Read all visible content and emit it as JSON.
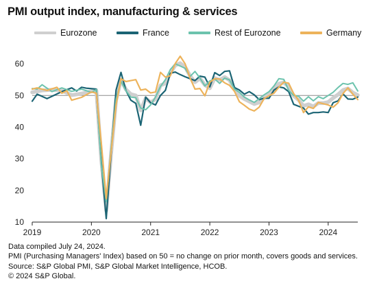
{
  "title": "PMI output index, manufacturing & services",
  "notes": [
    "Data compiled July 24, 2024.",
    "PMI (Purchasing Managers' Index) based on 50 = no change on prior month, covers goods and services.",
    "Source: S&P Global PMI, S&P Global Market Intelligence, HCOB.",
    "© 2024 S&P Global."
  ],
  "chart_data": {
    "type": "line",
    "title": "PMI output index, manufacturing & services",
    "xlabel": "",
    "ylabel": "",
    "x_range": [
      "2019-01",
      "2024-07"
    ],
    "ylim": [
      10,
      65
    ],
    "yticks": [
      10,
      20,
      30,
      40,
      50,
      60
    ],
    "xticks": [
      "2019",
      "2020",
      "2021",
      "2022",
      "2023",
      "2024"
    ],
    "reference_line": 50,
    "grid": false,
    "legend_position": "top",
    "series": [
      {
        "name": "Eurozone",
        "color": "#cfcfcf",
        "values": [
          {
            "x": "2019-01",
            "y": 51.0
          },
          {
            "x": "2019-03",
            "y": 51.6
          },
          {
            "x": "2019-05",
            "y": 51.8
          },
          {
            "x": "2019-07",
            "y": 51.5
          },
          {
            "x": "2019-09",
            "y": 50.1
          },
          {
            "x": "2019-11",
            "y": 50.6
          },
          {
            "x": "2020-01",
            "y": 51.3
          },
          {
            "x": "2020-02",
            "y": 51.6
          },
          {
            "x": "2020-03",
            "y": 29.7
          },
          {
            "x": "2020-04",
            "y": 13.6
          },
          {
            "x": "2020-05",
            "y": 31.9
          },
          {
            "x": "2020-06",
            "y": 48.5
          },
          {
            "x": "2020-07",
            "y": 54.9
          },
          {
            "x": "2020-08",
            "y": 51.9
          },
          {
            "x": "2020-09",
            "y": 50.4
          },
          {
            "x": "2020-10",
            "y": 50.0
          },
          {
            "x": "2020-11",
            "y": 45.3
          },
          {
            "x": "2020-12",
            "y": 49.1
          },
          {
            "x": "2021-01",
            "y": 47.8
          },
          {
            "x": "2021-02",
            "y": 48.8
          },
          {
            "x": "2021-03",
            "y": 53.2
          },
          {
            "x": "2021-04",
            "y": 53.8
          },
          {
            "x": "2021-05",
            "y": 57.1
          },
          {
            "x": "2021-06",
            "y": 59.5
          },
          {
            "x": "2021-07",
            "y": 60.2
          },
          {
            "x": "2021-08",
            "y": 59.0
          },
          {
            "x": "2021-09",
            "y": 56.2
          },
          {
            "x": "2021-10",
            "y": 54.2
          },
          {
            "x": "2021-11",
            "y": 55.4
          },
          {
            "x": "2021-12",
            "y": 53.3
          },
          {
            "x": "2022-01",
            "y": 52.3
          },
          {
            "x": "2022-02",
            "y": 55.5
          },
          {
            "x": "2022-03",
            "y": 54.9
          },
          {
            "x": "2022-04",
            "y": 55.8
          },
          {
            "x": "2022-05",
            "y": 54.8
          },
          {
            "x": "2022-06",
            "y": 52.0
          },
          {
            "x": "2022-07",
            "y": 49.9
          },
          {
            "x": "2022-08",
            "y": 48.9
          },
          {
            "x": "2022-09",
            "y": 48.1
          },
          {
            "x": "2022-10",
            "y": 47.3
          },
          {
            "x": "2022-11",
            "y": 47.8
          },
          {
            "x": "2022-12",
            "y": 49.3
          },
          {
            "x": "2023-01",
            "y": 50.3
          },
          {
            "x": "2023-02",
            "y": 52.0
          },
          {
            "x": "2023-03",
            "y": 53.7
          },
          {
            "x": "2023-04",
            "y": 54.1
          },
          {
            "x": "2023-05",
            "y": 52.8
          },
          {
            "x": "2023-06",
            "y": 49.9
          },
          {
            "x": "2023-07",
            "y": 48.6
          },
          {
            "x": "2023-08",
            "y": 46.7
          },
          {
            "x": "2023-09",
            "y": 47.2
          },
          {
            "x": "2023-10",
            "y": 46.5
          },
          {
            "x": "2023-11",
            "y": 47.6
          },
          {
            "x": "2023-12",
            "y": 47.6
          },
          {
            "x": "2024-01",
            "y": 47.9
          },
          {
            "x": "2024-02",
            "y": 49.2
          },
          {
            "x": "2024-03",
            "y": 50.3
          },
          {
            "x": "2024-04",
            "y": 51.7
          },
          {
            "x": "2024-05",
            "y": 52.2
          },
          {
            "x": "2024-06",
            "y": 50.9
          },
          {
            "x": "2024-07",
            "y": 50.1
          }
        ]
      },
      {
        "name": "France",
        "color": "#1b6474",
        "values": [
          {
            "x": "2019-01",
            "y": 48.2
          },
          {
            "x": "2019-02",
            "y": 50.4
          },
          {
            "x": "2019-04",
            "y": 49.0
          },
          {
            "x": "2019-07",
            "y": 51.2
          },
          {
            "x": "2019-09",
            "y": 52.4
          },
          {
            "x": "2019-10",
            "y": 51.4
          },
          {
            "x": "2019-11",
            "y": 52.6
          },
          {
            "x": "2019-12",
            "y": 52.3
          },
          {
            "x": "2020-02",
            "y": 52.0
          },
          {
            "x": "2020-03",
            "y": 28.9
          },
          {
            "x": "2020-04",
            "y": 11.1
          },
          {
            "x": "2020-05",
            "y": 32.1
          },
          {
            "x": "2020-06",
            "y": 51.7
          },
          {
            "x": "2020-07",
            "y": 57.3
          },
          {
            "x": "2020-08",
            "y": 51.6
          },
          {
            "x": "2020-09",
            "y": 48.5
          },
          {
            "x": "2020-10",
            "y": 47.5
          },
          {
            "x": "2020-11",
            "y": 40.6
          },
          {
            "x": "2020-12",
            "y": 49.5
          },
          {
            "x": "2021-01",
            "y": 47.7
          },
          {
            "x": "2021-02",
            "y": 47.0
          },
          {
            "x": "2021-03",
            "y": 50.0
          },
          {
            "x": "2021-04",
            "y": 51.6
          },
          {
            "x": "2021-05",
            "y": 57.0
          },
          {
            "x": "2021-06",
            "y": 57.4
          },
          {
            "x": "2021-07",
            "y": 56.6
          },
          {
            "x": "2021-08",
            "y": 55.9
          },
          {
            "x": "2021-09",
            "y": 55.3
          },
          {
            "x": "2021-10",
            "y": 54.7
          },
          {
            "x": "2021-11",
            "y": 56.1
          },
          {
            "x": "2021-12",
            "y": 55.8
          },
          {
            "x": "2022-01",
            "y": 52.7
          },
          {
            "x": "2022-02",
            "y": 57.2
          },
          {
            "x": "2022-03",
            "y": 56.3
          },
          {
            "x": "2022-04",
            "y": 57.6
          },
          {
            "x": "2022-05",
            "y": 57.8
          },
          {
            "x": "2022-06",
            "y": 52.5
          },
          {
            "x": "2022-07",
            "y": 51.7
          },
          {
            "x": "2022-08",
            "y": 50.4
          },
          {
            "x": "2022-09",
            "y": 51.2
          },
          {
            "x": "2022-10",
            "y": 50.2
          },
          {
            "x": "2022-11",
            "y": 48.7
          },
          {
            "x": "2022-12",
            "y": 49.1
          },
          {
            "x": "2023-01",
            "y": 49.1
          },
          {
            "x": "2023-02",
            "y": 51.7
          },
          {
            "x": "2023-03",
            "y": 52.7
          },
          {
            "x": "2023-04",
            "y": 52.4
          },
          {
            "x": "2023-05",
            "y": 51.2
          },
          {
            "x": "2023-06",
            "y": 47.2
          },
          {
            "x": "2023-07",
            "y": 46.6
          },
          {
            "x": "2023-08",
            "y": 46.0
          },
          {
            "x": "2023-09",
            "y": 44.1
          },
          {
            "x": "2023-10",
            "y": 44.6
          },
          {
            "x": "2023-11",
            "y": 44.6
          },
          {
            "x": "2023-12",
            "y": 44.8
          },
          {
            "x": "2024-01",
            "y": 44.6
          },
          {
            "x": "2024-02",
            "y": 47.7
          },
          {
            "x": "2024-03",
            "y": 48.3
          },
          {
            "x": "2024-04",
            "y": 50.5
          },
          {
            "x": "2024-05",
            "y": 48.9
          },
          {
            "x": "2024-06",
            "y": 48.8
          },
          {
            "x": "2024-07",
            "y": 49.5
          }
        ]
      },
      {
        "name": "Rest of Eurozone",
        "color": "#6cc3ad",
        "values": [
          {
            "x": "2019-01",
            "y": 52.2
          },
          {
            "x": "2019-02",
            "y": 52.0
          },
          {
            "x": "2019-03",
            "y": 53.4
          },
          {
            "x": "2019-05",
            "y": 51.2
          },
          {
            "x": "2019-07",
            "y": 52.4
          },
          {
            "x": "2019-09",
            "y": 51.3
          },
          {
            "x": "2019-11",
            "y": 52.0
          },
          {
            "x": "2020-01",
            "y": 51.0
          },
          {
            "x": "2020-02",
            "y": 51.9
          },
          {
            "x": "2020-03",
            "y": 27.9
          },
          {
            "x": "2020-04",
            "y": 16.4
          },
          {
            "x": "2020-05",
            "y": 33.5
          },
          {
            "x": "2020-06",
            "y": 48.9
          },
          {
            "x": "2020-07",
            "y": 54.5
          },
          {
            "x": "2020-08",
            "y": 51.5
          },
          {
            "x": "2020-09",
            "y": 49.5
          },
          {
            "x": "2020-10",
            "y": 49.3
          },
          {
            "x": "2020-11",
            "y": 46.0
          },
          {
            "x": "2020-12",
            "y": 45.5
          },
          {
            "x": "2021-01",
            "y": 47.0
          },
          {
            "x": "2021-02",
            "y": 49.5
          },
          {
            "x": "2021-03",
            "y": 52.8
          },
          {
            "x": "2021-04",
            "y": 55.0
          },
          {
            "x": "2021-05",
            "y": 58.2
          },
          {
            "x": "2021-06",
            "y": 60.0
          },
          {
            "x": "2021-07",
            "y": 59.3
          },
          {
            "x": "2021-08",
            "y": 58.6
          },
          {
            "x": "2021-09",
            "y": 56.0
          },
          {
            "x": "2021-10",
            "y": 57.6
          },
          {
            "x": "2021-11",
            "y": 55.5
          },
          {
            "x": "2021-12",
            "y": 53.0
          },
          {
            "x": "2022-01",
            "y": 54.6
          },
          {
            "x": "2022-02",
            "y": 55.2
          },
          {
            "x": "2022-03",
            "y": 53.8
          },
          {
            "x": "2022-04",
            "y": 55.5
          },
          {
            "x": "2022-05",
            "y": 54.9
          },
          {
            "x": "2022-06",
            "y": 52.0
          },
          {
            "x": "2022-07",
            "y": 51.0
          },
          {
            "x": "2022-08",
            "y": 49.5
          },
          {
            "x": "2022-09",
            "y": 48.6
          },
          {
            "x": "2022-10",
            "y": 47.8
          },
          {
            "x": "2022-11",
            "y": 49.0
          },
          {
            "x": "2022-12",
            "y": 50.2
          },
          {
            "x": "2023-01",
            "y": 51.2
          },
          {
            "x": "2023-02",
            "y": 53.0
          },
          {
            "x": "2023-03",
            "y": 55.3
          },
          {
            "x": "2023-04",
            "y": 55.1
          },
          {
            "x": "2023-05",
            "y": 51.6
          },
          {
            "x": "2023-06",
            "y": 50.0
          },
          {
            "x": "2023-07",
            "y": 49.8
          },
          {
            "x": "2023-08",
            "y": 48.2
          },
          {
            "x": "2023-09",
            "y": 49.6
          },
          {
            "x": "2023-10",
            "y": 48.3
          },
          {
            "x": "2023-11",
            "y": 49.6
          },
          {
            "x": "2023-12",
            "y": 49.0
          },
          {
            "x": "2024-01",
            "y": 50.0
          },
          {
            "x": "2024-02",
            "y": 51.0
          },
          {
            "x": "2024-03",
            "y": 52.5
          },
          {
            "x": "2024-04",
            "y": 53.8
          },
          {
            "x": "2024-05",
            "y": 53.5
          },
          {
            "x": "2024-06",
            "y": 54.0
          },
          {
            "x": "2024-07",
            "y": 51.4
          }
        ]
      },
      {
        "name": "Germany",
        "color": "#edb35b",
        "values": [
          {
            "x": "2019-01",
            "y": 52.0
          },
          {
            "x": "2019-02",
            "y": 52.4
          },
          {
            "x": "2019-04",
            "y": 51.6
          },
          {
            "x": "2019-06",
            "y": 52.6
          },
          {
            "x": "2019-07",
            "y": 50.7
          },
          {
            "x": "2019-08",
            "y": 51.5
          },
          {
            "x": "2019-09",
            "y": 48.5
          },
          {
            "x": "2019-11",
            "y": 49.4
          },
          {
            "x": "2020-01",
            "y": 51.1
          },
          {
            "x": "2020-02",
            "y": 50.7
          },
          {
            "x": "2020-03",
            "y": 35.0
          },
          {
            "x": "2020-04",
            "y": 17.4
          },
          {
            "x": "2020-05",
            "y": 32.3
          },
          {
            "x": "2020-06",
            "y": 47.0
          },
          {
            "x": "2020-07",
            "y": 55.3
          },
          {
            "x": "2020-08",
            "y": 54.4
          },
          {
            "x": "2020-09",
            "y": 54.7
          },
          {
            "x": "2020-10",
            "y": 55.0
          },
          {
            "x": "2020-11",
            "y": 51.7
          },
          {
            "x": "2020-12",
            "y": 52.0
          },
          {
            "x": "2021-01",
            "y": 50.8
          },
          {
            "x": "2021-02",
            "y": 51.1
          },
          {
            "x": "2021-03",
            "y": 57.3
          },
          {
            "x": "2021-04",
            "y": 55.8
          },
          {
            "x": "2021-05",
            "y": 56.2
          },
          {
            "x": "2021-06",
            "y": 60.1
          },
          {
            "x": "2021-07",
            "y": 62.4
          },
          {
            "x": "2021-08",
            "y": 60.0
          },
          {
            "x": "2021-09",
            "y": 55.5
          },
          {
            "x": "2021-10",
            "y": 52.0
          },
          {
            "x": "2021-11",
            "y": 52.2
          },
          {
            "x": "2021-12",
            "y": 49.9
          },
          {
            "x": "2022-01",
            "y": 54.2
          },
          {
            "x": "2022-02",
            "y": 55.3
          },
          {
            "x": "2022-03",
            "y": 55.2
          },
          {
            "x": "2022-04",
            "y": 54.0
          },
          {
            "x": "2022-05",
            "y": 53.2
          },
          {
            "x": "2022-06",
            "y": 51.3
          },
          {
            "x": "2022-07",
            "y": 48.0
          },
          {
            "x": "2022-08",
            "y": 46.9
          },
          {
            "x": "2022-09",
            "y": 45.7
          },
          {
            "x": "2022-10",
            "y": 45.1
          },
          {
            "x": "2022-11",
            "y": 46.3
          },
          {
            "x": "2022-12",
            "y": 49.0
          },
          {
            "x": "2023-01",
            "y": 49.9
          },
          {
            "x": "2023-02",
            "y": 50.7
          },
          {
            "x": "2023-03",
            "y": 52.6
          },
          {
            "x": "2023-04",
            "y": 54.2
          },
          {
            "x": "2023-05",
            "y": 53.9
          },
          {
            "x": "2023-06",
            "y": 50.6
          },
          {
            "x": "2023-07",
            "y": 48.5
          },
          {
            "x": "2023-08",
            "y": 44.6
          },
          {
            "x": "2023-09",
            "y": 46.4
          },
          {
            "x": "2023-10",
            "y": 45.9
          },
          {
            "x": "2023-11",
            "y": 47.8
          },
          {
            "x": "2023-12",
            "y": 47.4
          },
          {
            "x": "2024-01",
            "y": 47.0
          },
          {
            "x": "2024-02",
            "y": 46.3
          },
          {
            "x": "2024-03",
            "y": 47.7
          },
          {
            "x": "2024-04",
            "y": 50.6
          },
          {
            "x": "2024-05",
            "y": 52.4
          },
          {
            "x": "2024-06",
            "y": 50.4
          },
          {
            "x": "2024-07",
            "y": 48.7
          }
        ]
      }
    ]
  }
}
